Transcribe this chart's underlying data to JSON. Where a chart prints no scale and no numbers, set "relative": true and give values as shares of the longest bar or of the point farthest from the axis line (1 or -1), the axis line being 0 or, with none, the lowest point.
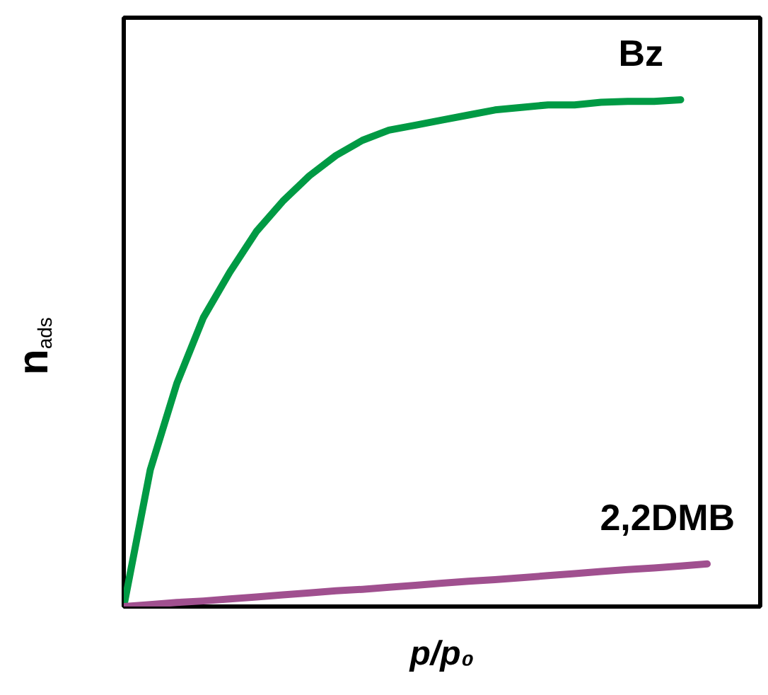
{
  "chart_data": {
    "type": "line",
    "relative": true,
    "xlabel": "p/p₀",
    "ylabel": "n$_{ads}$",
    "grid": false,
    "categories": [
      null,
      null,
      null,
      null,
      null,
      null,
      null,
      null,
      null,
      null,
      null,
      null,
      null,
      null,
      null,
      null,
      null,
      null,
      null,
      null,
      null,
      null,
      null,
      null,
      null
    ],
    "series": [
      {
        "name": "Bz",
        "color": "#009a44",
        "values": [
          0,
          0.27,
          0.44,
          0.57,
          0.66,
          0.74,
          0.8,
          0.85,
          0.89,
          0.92,
          0.94,
          0.95,
          0.96,
          0.97,
          0.98,
          0.985,
          0.99,
          0.99,
          0.995,
          0.997,
          0.997,
          1.0,
          null,
          null,
          null
        ]
      },
      {
        "name": "2,2DMB",
        "color": "#a0508f",
        "values": [
          0,
          0.004,
          0.008,
          0.011,
          0.015,
          0.019,
          0.023,
          0.027,
          0.031,
          0.034,
          0.038,
          0.042,
          0.046,
          0.05,
          0.053,
          0.057,
          0.061,
          0.065,
          0.069,
          0.073,
          0.076,
          0.08,
          0.084,
          null,
          null
        ]
      }
    ]
  }
}
